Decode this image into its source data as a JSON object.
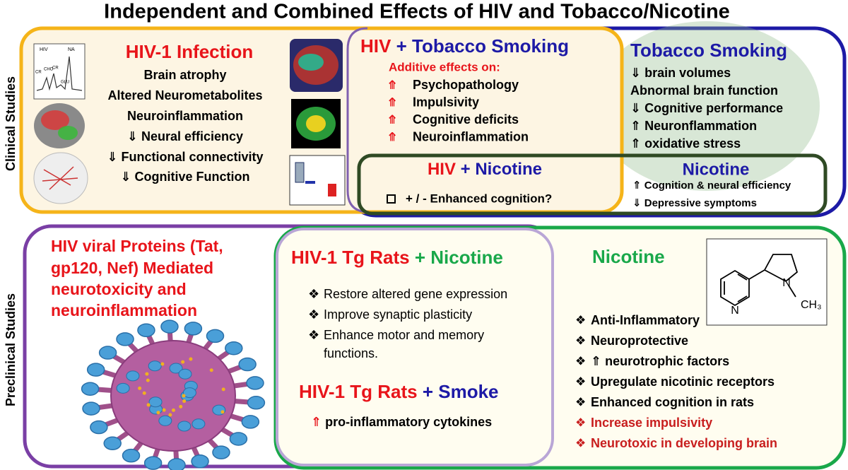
{
  "title": "Independent and Combined Effects of HIV and Tobacco/Nicotine",
  "side_labels": {
    "clinical": "Clinical Studies",
    "preclinical": "Preclinical Studies"
  },
  "hiv_infection": {
    "heading": "HIV-1 Infection",
    "items": [
      "Brain atrophy",
      "Altered Neurometabolites",
      "Neuroinflammation",
      "⇓ Neural efficiency",
      "⇓ Functional connectivity",
      "⇓ Cognitive Function"
    ],
    "spectrum_labels": [
      "HIV",
      "NA",
      "CHO",
      "CR",
      "CR",
      "GLU"
    ]
  },
  "hiv_tobacco": {
    "heading": {
      "left": "HIV",
      "plus": "+",
      "right": "Tobacco Smoking"
    },
    "subheading": "Additive effects on:",
    "items": [
      {
        "arrow": "⤊",
        "text": "Psychopathology"
      },
      {
        "arrow": "⤊",
        "text": "Impulsivity"
      },
      {
        "arrow": "⤊",
        "text": "Cognitive deficits"
      },
      {
        "arrow": "⤊",
        "text": "Neuroinflammation"
      }
    ]
  },
  "tobacco": {
    "heading": "Tobacco Smoking",
    "items": [
      "⇓ brain volumes",
      "Abnormal brain function",
      "⇓ Cognitive performance",
      "⇑ Neuronflammation",
      "⇑ oxidative stress"
    ]
  },
  "hiv_nicotine": {
    "heading": {
      "left": "HIV",
      "plus": "+",
      "right": "Nicotine"
    },
    "item": "+ / - Enhanced cognition?"
  },
  "nicotine_clinical": {
    "heading": "Nicotine",
    "items": [
      "⇑ Cognition & neural efficiency",
      "⇓ Depressive symptoms"
    ]
  },
  "viral_proteins": {
    "lines": [
      "HIV viral Proteins (Tat,",
      "gp120, Nef) Mediated",
      "neurotoxicity and",
      "neuroinflammation"
    ]
  },
  "tg_nicotine": {
    "heading": {
      "left": "HIV-1 Tg Rats",
      "plus": "+",
      "right": "Nicotine"
    },
    "items": [
      "Restore altered gene expression",
      "Improve synaptic plasticity",
      "Enhance motor and memory",
      "functions."
    ]
  },
  "tg_smoke": {
    "heading": {
      "left": "HIV-1 Tg Rats",
      "plus": "+",
      "right": "Smoke"
    },
    "item": {
      "arrow": "⇑",
      "text": "pro-inflammatory cytokines"
    }
  },
  "nicotine_preclinical": {
    "heading": "Nicotine",
    "molecule_labels": [
      "N",
      "N",
      "CH₃"
    ],
    "items": [
      "Anti-Inflammatory",
      "Neuroprotective",
      "⇑ neurotrophic factors",
      "Upregulate nicotinic receptors",
      "Enhanced cognition in rats",
      "Increase impulsivity",
      "Neurotoxic in developing brain"
    ]
  }
}
